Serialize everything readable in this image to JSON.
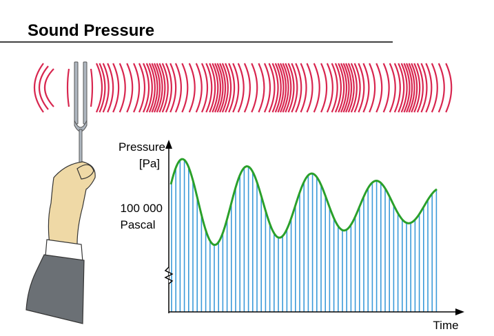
{
  "title": "Sound Pressure",
  "axes": {
    "y_label": [
      "Pressure",
      "[Pa]"
    ],
    "reference_label": [
      "100 000",
      "Pascal"
    ],
    "x_label": "Time"
  }
}
